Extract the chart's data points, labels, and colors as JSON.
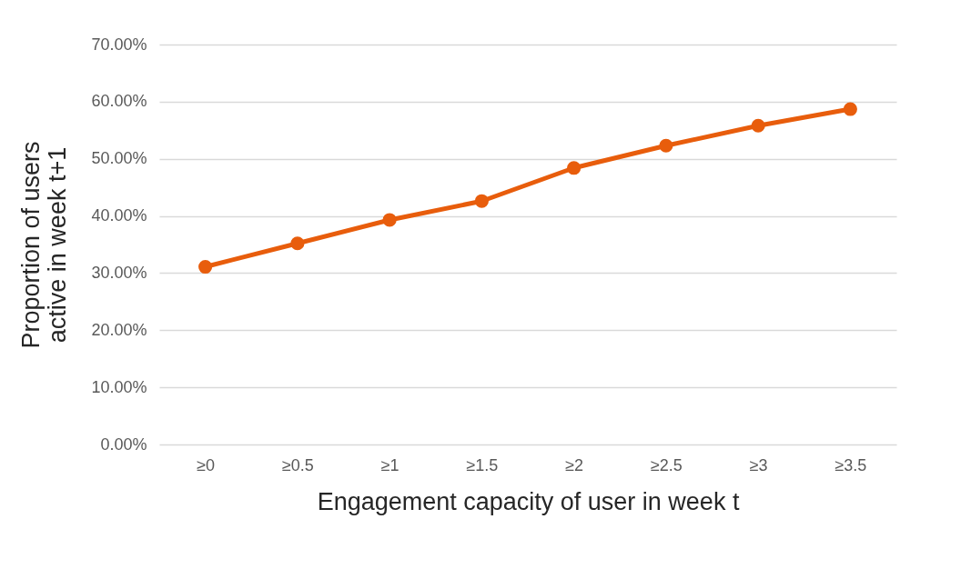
{
  "chart_data": {
    "type": "line",
    "xlabel": "Engagement capacity of user in week t",
    "ylabel": "Proportion of users active in week t+1",
    "categories": [
      "≥0",
      "≥0.5",
      "≥1",
      "≥1.5",
      "≥2",
      "≥2.5",
      "≥3",
      "≥3.5"
    ],
    "series": [
      {
        "color": "#e85d0c",
        "values": [
          31.1,
          35.2,
          39.3,
          42.6,
          48.4,
          52.3,
          55.8,
          58.7
        ]
      }
    ],
    "ylim": [
      0,
      70
    ],
    "yticks": [
      {
        "value": 0,
        "label": "0.00%"
      },
      {
        "value": 10,
        "label": "10.00%"
      },
      {
        "value": 20,
        "label": "20.00%"
      },
      {
        "value": 30,
        "label": "30.00%"
      },
      {
        "value": 40,
        "label": "40.00%"
      },
      {
        "value": 50,
        "label": "50.00%"
      },
      {
        "value": 60,
        "label": "60.00%"
      },
      {
        "value": 70,
        "label": "70.00%"
      }
    ],
    "grid": "y",
    "marker": "circle",
    "line_style": "solid"
  }
}
